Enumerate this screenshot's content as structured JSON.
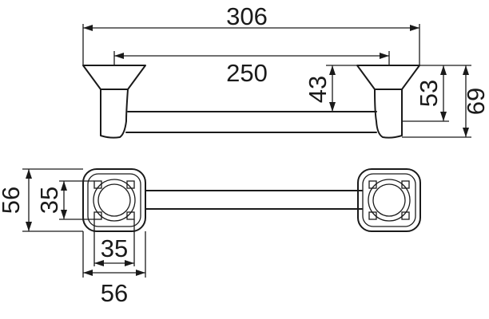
{
  "dimensions": {
    "overall_length": "306",
    "center_distance": "250",
    "bar_height": "43",
    "mount_height_inner": "53",
    "mount_height_outer": "69",
    "plate_height": "56",
    "plate_inner_height": "35",
    "plate_inner_width": "35",
    "plate_width": "56"
  }
}
